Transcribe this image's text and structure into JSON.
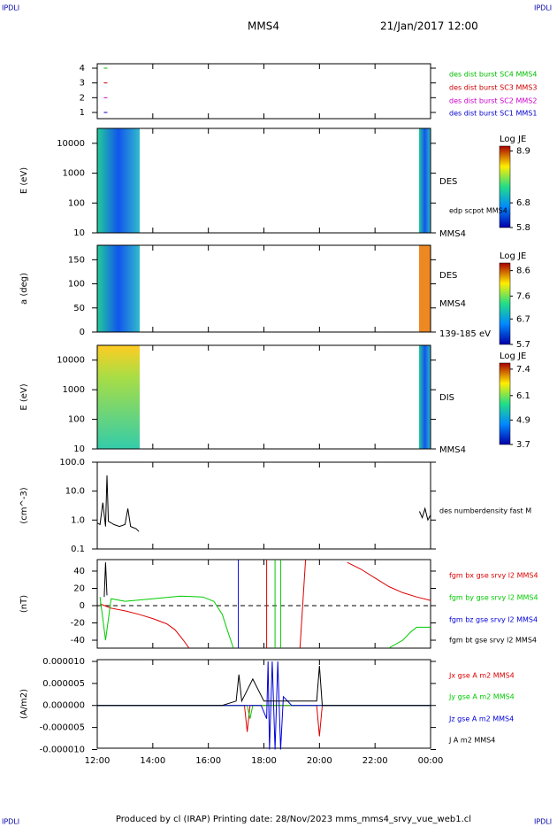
{
  "header": {
    "corner": "IPDLI",
    "title": "MMS4",
    "date": "21/Jan/2017 12:00"
  },
  "footer": "Produced by cl (IRAP)   Printing date: 28/Nov/2023   mms_mms4_srvy_vue_web1.cl",
  "x_axis": {
    "xlim": [
      12,
      24
    ],
    "xticks": [
      {
        "value": 12,
        "label": "12:00"
      },
      {
        "value": 14,
        "label": "14:00"
      },
      {
        "value": 16,
        "label": "16:00"
      },
      {
        "value": 18,
        "label": "18:00"
      },
      {
        "value": 20,
        "label": "20:00"
      },
      {
        "value": 22,
        "label": "22:00"
      },
      {
        "value": 24,
        "label": "00:00"
      }
    ]
  },
  "chart_data": [
    {
      "type": "scatter",
      "ylim": [
        0.58,
        4.3
      ],
      "yticks": [
        1,
        2,
        3,
        4
      ],
      "series": [
        {
          "name": "des dist burst SC1 MMS1",
          "color": "#0000cc",
          "x": [
            12.3
          ],
          "values": [
            1
          ]
        },
        {
          "name": "des dist burst SC2 MMS2",
          "color": "#cc00cc",
          "x": [
            12.3
          ],
          "values": [
            2
          ]
        },
        {
          "name": "des dist burst SC3 MMS3",
          "color": "#cc0000",
          "x": [
            12.3
          ],
          "values": [
            3
          ]
        },
        {
          "name": "des dist burst SC4 MMS4",
          "color": "#00bb00",
          "x": [
            12.3
          ],
          "values": [
            4
          ]
        }
      ]
    },
    {
      "type": "spectrogram",
      "ylabel": "E (eV)",
      "log": true,
      "ylim": [
        10,
        31600
      ],
      "yticks": [
        10,
        100,
        1000,
        10000
      ],
      "colorbar": {
        "label": "Log JE",
        "lim": [
          5.8,
          9.1
        ],
        "ticks": [
          8.9,
          6.8,
          5.8
        ]
      },
      "annotations": [
        "DES",
        "edp scpot MMS4",
        "MMS4"
      ]
    },
    {
      "type": "spectrogram",
      "ylabel": "a (deg)",
      "log": false,
      "ylim": [
        0,
        180
      ],
      "yticks": [
        0,
        50,
        100,
        150
      ],
      "colorbar": {
        "label": "Log JE",
        "lim": [
          5.7,
          8.9
        ],
        "ticks": [
          8.6,
          7.6,
          6.7,
          5.7
        ]
      },
      "annotations": [
        "DES",
        "MMS4",
        "139-185 eV"
      ]
    },
    {
      "type": "spectrogram",
      "ylabel": "E (eV)",
      "log": true,
      "ylim": [
        10,
        31600
      ],
      "yticks": [
        10,
        100,
        1000,
        10000
      ],
      "colorbar": {
        "label": "Log JE",
        "lim": [
          3.7,
          7.7
        ],
        "ticks": [
          7.4,
          6.1,
          4.9,
          3.7
        ]
      },
      "annotations": [
        "DIS",
        "MMS4"
      ]
    },
    {
      "type": "line",
      "ylabel": "(cm^-3)",
      "log": true,
      "ylim": [
        0.1,
        100
      ],
      "yticks": [
        0.1,
        {
          "value": 1,
          "label": "1.0"
        },
        {
          "value": 10,
          "label": "10.0"
        },
        {
          "value": 100,
          "label": "100.0"
        }
      ],
      "annotations": [
        "des numberdensity fast M"
      ],
      "series": [
        {
          "name": "des numberdensity fast M",
          "color": "#000000",
          "x": [
            12.0,
            12.1,
            12.2,
            12.3,
            12.35,
            12.4,
            12.5,
            12.6,
            12.8,
            13.0,
            13.1,
            13.2,
            13.4,
            13.5,
            14,
            23.6,
            23.7,
            23.8,
            23.9,
            24.0
          ],
          "values": [
            0.8,
            0.7,
            4,
            0.6,
            35,
            0.9,
            0.8,
            0.7,
            0.6,
            0.7,
            2.5,
            0.6,
            0.5,
            0.4,
            null,
            2,
            1.2,
            2.5,
            1,
            1.5
          ]
        }
      ]
    },
    {
      "type": "line",
      "ylabel": "(nT)",
      "ylim": [
        -49.2,
        53.3
      ],
      "yticks": [
        40,
        20,
        0,
        -20,
        -40
      ],
      "zero_line": true,
      "series": [
        {
          "name": "fgm bx gse srvy l2 MMS4",
          "color": "#dd0000",
          "x": [
            12.1,
            12.5,
            13,
            13.5,
            14,
            14.5,
            14.8,
            15.1,
            15.3,
            15.5,
            18.1,
            18.1,
            18.2,
            19.3,
            19.5,
            19.6,
            21.0,
            21.5,
            22,
            22.5,
            23,
            23.5,
            24
          ],
          "values": [
            2,
            -3,
            -6,
            -10,
            -15,
            -21,
            -28,
            -40,
            -49,
            null,
            -49,
            53,
            null,
            -49,
            53,
            null,
            50,
            42,
            32,
            22,
            15,
            10,
            6
          ]
        },
        {
          "name": "fgm by gse srvy l2 MMS4",
          "color": "#00cc00",
          "x": [
            12.1,
            12.3,
            12.5,
            13,
            14,
            15,
            15.8,
            16.2,
            16.5,
            16.7,
            16.9,
            17,
            18.4,
            18.4,
            18.5,
            18.6,
            18.6,
            18.7,
            22.5,
            23,
            23.3,
            23.5,
            24
          ],
          "values": [
            10,
            -40,
            8,
            5,
            8,
            11,
            10,
            5,
            -10,
            -30,
            -49,
            null,
            -49,
            53,
            null,
            53,
            -49,
            null,
            -49,
            -40,
            -30,
            -25,
            -25
          ]
        },
        {
          "name": "fgm bz gse srvy l2 MMS4",
          "color": "#0000dd",
          "x": [
            17.08,
            17.08
          ],
          "values": [
            -49,
            53
          ]
        },
        {
          "name": "fgm bt gse srvy l2 MMS4",
          "color": "#000000",
          "x": [
            12.25,
            12.3,
            12.35
          ],
          "values": [
            10,
            50,
            12
          ]
        }
      ]
    },
    {
      "type": "line",
      "ylabel": "(A/m2)",
      "ylim": [
        -9.7e-06,
        1.04e-05
      ],
      "yticks": [
        {
          "value": 1e-05,
          "label": "0.000010"
        },
        {
          "value": 5e-06,
          "label": "0.000005"
        },
        {
          "value": 0,
          "label": "0.000000"
        },
        {
          "value": -5e-06,
          "label": "-0.000005"
        },
        {
          "value": -1e-05,
          "label": "-0.000010"
        }
      ],
      "series": [
        {
          "name": "Jx gse A m2 MMS4",
          "color": "#dd0000",
          "x": [
            12,
            17.3,
            17.4,
            17.5,
            19.9,
            20,
            20.1,
            24
          ],
          "values": [
            0,
            0,
            -6e-06,
            0,
            0,
            -7e-06,
            0,
            0
          ]
        },
        {
          "name": "Jy gse A m2 MMS4",
          "color": "#00cc00",
          "x": [
            12,
            17.4,
            17.5,
            17.6,
            24
          ],
          "values": [
            0,
            0,
            -3e-06,
            0,
            0
          ]
        },
        {
          "name": "Jz gse A m2 MMS4",
          "color": "#0000dd",
          "x": [
            12,
            17.9,
            18.1,
            18.15,
            18.2,
            18.3,
            18.4,
            18.5,
            18.6,
            18.7,
            19,
            24
          ],
          "values": [
            0,
            0,
            -3e-06,
            1e-05,
            -1e-05,
            1e-05,
            -1e-05,
            1e-05,
            -1e-05,
            2e-06,
            0,
            0
          ]
        },
        {
          "name": "J A m2 MMS4",
          "color": "#000000",
          "x": [
            12,
            16.5,
            17,
            17.1,
            17.2,
            17.6,
            18,
            19,
            19.9,
            20,
            20.1,
            22,
            24
          ],
          "values": [
            0,
            0,
            1e-06,
            7e-06,
            1e-06,
            6e-06,
            1e-06,
            1e-06,
            1e-06,
            9e-06,
            0,
            0,
            0
          ]
        }
      ]
    }
  ]
}
